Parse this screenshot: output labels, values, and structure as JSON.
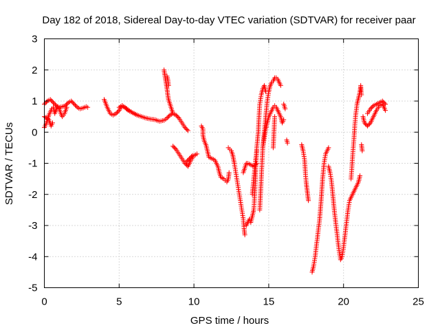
{
  "chart_data": {
    "type": "scatter",
    "title": "Day 182 of 2018, Sidereal Day-to-day VTEC variation (SDTVAR) for receiver paar",
    "xlabel": "GPS time / hours",
    "ylabel": "SDTVAR / TECUs",
    "xlim": [
      0,
      25
    ],
    "ylim": [
      -5,
      3
    ],
    "xticks": [
      0,
      5,
      10,
      15,
      20,
      25
    ],
    "yticks": [
      3,
      2,
      1,
      0,
      -1,
      -2,
      -3,
      -4,
      -5
    ],
    "grid": true,
    "marker": "plus",
    "color": "#ff0000",
    "series": [
      {
        "name": "SDTVAR",
        "segments": [
          [
            [
              0.0,
              0.9
            ],
            [
              0.2,
              1.0
            ],
            [
              0.4,
              1.05
            ],
            [
              0.6,
              0.95
            ],
            [
              0.8,
              0.85
            ],
            [
              1.0,
              0.8
            ],
            [
              1.2,
              0.82
            ],
            [
              1.4,
              0.85
            ],
            [
              1.6,
              0.95
            ],
            [
              1.8,
              1.0
            ],
            [
              2.0,
              0.9
            ],
            [
              2.2,
              0.8
            ],
            [
              2.4,
              0.75
            ],
            [
              2.6,
              0.78
            ],
            [
              2.8,
              0.82
            ],
            [
              2.9,
              0.8
            ]
          ],
          [
            [
              0.0,
              0.15
            ],
            [
              0.15,
              0.3
            ],
            [
              0.3,
              0.55
            ],
            [
              0.5,
              0.75
            ],
            [
              0.6,
              0.8
            ],
            [
              0.7,
              0.6
            ],
            [
              0.85,
              0.8
            ],
            [
              1.0,
              0.75
            ],
            [
              1.1,
              0.6
            ],
            [
              1.2,
              0.5
            ],
            [
              1.35,
              0.6
            ],
            [
              1.5,
              0.8
            ]
          ],
          [
            [
              0.0,
              0.5
            ],
            [
              0.15,
              0.45
            ],
            [
              0.3,
              0.4
            ],
            [
              0.45,
              0.2
            ],
            [
              0.55,
              0.3
            ]
          ],
          [
            [
              4.0,
              1.05
            ],
            [
              4.2,
              0.8
            ],
            [
              4.4,
              0.6
            ],
            [
              4.6,
              0.55
            ],
            [
              4.8,
              0.6
            ],
            [
              5.0,
              0.7
            ],
            [
              5.2,
              0.85
            ],
            [
              5.4,
              0.8
            ],
            [
              5.6,
              0.7
            ],
            [
              5.8,
              0.65
            ],
            [
              6.0,
              0.6
            ],
            [
              6.2,
              0.55
            ],
            [
              6.5,
              0.5
            ],
            [
              6.8,
              0.45
            ],
            [
              7.1,
              0.42
            ],
            [
              7.4,
              0.4
            ],
            [
              7.7,
              0.35
            ],
            [
              8.0,
              0.38
            ],
            [
              8.2,
              0.45
            ],
            [
              8.4,
              0.55
            ],
            [
              8.6,
              0.6
            ],
            [
              8.8,
              0.55
            ],
            [
              9.0,
              0.45
            ],
            [
              9.2,
              0.3
            ],
            [
              9.4,
              0.15
            ],
            [
              9.6,
              0.05
            ]
          ],
          [
            [
              5.0,
              0.8
            ],
            [
              5.2,
              0.85
            ],
            [
              5.5,
              0.75
            ],
            [
              5.8,
              0.65
            ],
            [
              6.2,
              0.55
            ]
          ],
          [
            [
              8.0,
              2.0
            ],
            [
              8.05,
              1.85
            ],
            [
              8.1,
              1.7
            ],
            [
              8.15,
              1.55
            ],
            [
              8.2,
              1.4
            ],
            [
              8.25,
              1.2
            ],
            [
              8.3,
              1.05
            ],
            [
              8.4,
              0.9
            ],
            [
              8.5,
              0.75
            ],
            [
              8.6,
              0.6
            ]
          ],
          [
            [
              8.2,
              1.8
            ],
            [
              8.25,
              1.7
            ],
            [
              8.3,
              1.5
            ]
          ],
          [
            [
              8.6,
              -0.45
            ],
            [
              8.8,
              -0.55
            ],
            [
              9.0,
              -0.7
            ],
            [
              9.2,
              -0.85
            ],
            [
              9.4,
              -1.0
            ],
            [
              9.6,
              -1.1
            ],
            [
              9.8,
              -0.9
            ],
            [
              10.0,
              -0.75
            ],
            [
              10.2,
              -0.7
            ]
          ],
          [
            [
              9.5,
              -0.95
            ],
            [
              9.7,
              -0.85
            ],
            [
              9.9,
              -0.75
            ]
          ],
          [
            [
              10.5,
              0.2
            ],
            [
              10.6,
              0.1
            ],
            [
              10.6,
              -0.1
            ],
            [
              10.7,
              -0.3
            ],
            [
              10.8,
              -0.4
            ],
            [
              10.9,
              -0.6
            ],
            [
              11.0,
              -0.8
            ],
            [
              11.2,
              -0.85
            ],
            [
              11.4,
              -0.9
            ],
            [
              11.5,
              -1.0
            ],
            [
              11.6,
              -1.1
            ],
            [
              11.7,
              -1.3
            ],
            [
              11.8,
              -1.45
            ],
            [
              12.0,
              -1.5
            ],
            [
              12.1,
              -1.55
            ],
            [
              12.2,
              -1.6
            ],
            [
              12.3,
              -1.5
            ],
            [
              12.35,
              -1.3
            ]
          ],
          [
            [
              12.3,
              -0.5
            ],
            [
              12.4,
              -0.55
            ],
            [
              12.5,
              -0.6
            ],
            [
              12.6,
              -0.75
            ],
            [
              12.7,
              -1.0
            ],
            [
              12.8,
              -1.3
            ],
            [
              12.9,
              -1.6
            ],
            [
              13.0,
              -1.9
            ],
            [
              13.1,
              -2.2
            ],
            [
              13.2,
              -2.5
            ],
            [
              13.3,
              -2.8
            ],
            [
              13.35,
              -3.1
            ],
            [
              13.4,
              -3.3
            ]
          ],
          [
            [
              13.3,
              -1.3
            ],
            [
              13.4,
              -1.15
            ],
            [
              13.5,
              -1.0
            ],
            [
              13.6,
              -1.0
            ],
            [
              13.8,
              -1.05
            ],
            [
              14.0,
              -1.1
            ],
            [
              14.2,
              -1.0
            ]
          ],
          [
            [
              13.5,
              -3.0
            ],
            [
              13.6,
              -2.9
            ],
            [
              13.7,
              -2.8
            ],
            [
              13.8,
              -2.9
            ],
            [
              13.9,
              -2.7
            ],
            [
              14.0,
              -2.5
            ],
            [
              14.05,
              -2.1
            ],
            [
              14.1,
              -1.6
            ],
            [
              14.15,
              -1.0
            ],
            [
              14.2,
              -0.5
            ],
            [
              14.3,
              0.0
            ],
            [
              14.35,
              0.5
            ],
            [
              14.4,
              0.9
            ],
            [
              14.5,
              1.2
            ],
            [
              14.6,
              1.4
            ],
            [
              14.7,
              1.5
            ],
            [
              14.8,
              1.3
            ]
          ],
          [
            [
              13.9,
              -2.0
            ],
            [
              14.0,
              -1.5
            ],
            [
              14.1,
              -1.0
            ],
            [
              14.2,
              -0.6
            ]
          ],
          [
            [
              14.4,
              -2.5
            ],
            [
              14.45,
              -2.0
            ],
            [
              14.5,
              -1.5
            ],
            [
              14.55,
              -1.0
            ],
            [
              14.6,
              -0.5
            ],
            [
              14.7,
              0.0
            ],
            [
              14.8,
              0.5
            ],
            [
              14.9,
              1.0
            ],
            [
              15.0,
              1.3
            ],
            [
              15.1,
              1.5
            ],
            [
              15.2,
              1.6
            ],
            [
              15.3,
              1.65
            ],
            [
              15.4,
              1.75
            ],
            [
              15.5,
              1.75
            ],
            [
              15.6,
              1.7
            ],
            [
              15.7,
              1.6
            ],
            [
              15.8,
              1.5
            ]
          ],
          [
            [
              14.6,
              -0.5
            ],
            [
              14.7,
              -0.2
            ],
            [
              14.8,
              0.1
            ],
            [
              14.9,
              0.3
            ],
            [
              15.0,
              0.5
            ],
            [
              15.1,
              0.6
            ],
            [
              15.2,
              0.7
            ],
            [
              15.3,
              0.8
            ],
            [
              15.4,
              0.85
            ],
            [
              15.5,
              0.8
            ],
            [
              15.6,
              0.7
            ],
            [
              15.7,
              0.6
            ],
            [
              15.8,
              0.5
            ],
            [
              15.9,
              0.3
            ],
            [
              16.0,
              0.4
            ]
          ],
          [
            [
              15.3,
              -0.5
            ],
            [
              15.35,
              0.0
            ],
            [
              15.4,
              0.5
            ]
          ],
          [
            [
              16.0,
              0.9
            ],
            [
              16.1,
              0.75
            ]
          ],
          [
            [
              16.2,
              -0.25
            ],
            [
              16.25,
              -0.35
            ]
          ],
          [
            [
              17.2,
              -0.4
            ],
            [
              17.3,
              -0.6
            ],
            [
              17.4,
              -0.9
            ],
            [
              17.45,
              -1.3
            ],
            [
              17.5,
              -1.6
            ],
            [
              17.55,
              -1.8
            ],
            [
              17.6,
              -2.0
            ],
            [
              17.65,
              -2.2
            ]
          ],
          [
            [
              17.9,
              -4.5
            ],
            [
              18.0,
              -4.3
            ],
            [
              18.1,
              -4.0
            ],
            [
              18.2,
              -3.6
            ],
            [
              18.3,
              -3.2
            ],
            [
              18.4,
              -2.8
            ],
            [
              18.5,
              -2.2
            ],
            [
              18.6,
              -1.5
            ],
            [
              18.7,
              -1.0
            ],
            [
              18.8,
              -0.7
            ],
            [
              18.9,
              -0.6
            ],
            [
              19.0,
              -0.5
            ]
          ],
          [
            [
              19.0,
              -1.1
            ],
            [
              19.1,
              -1.3
            ],
            [
              19.2,
              -1.6
            ],
            [
              19.3,
              -2.1
            ],
            [
              19.4,
              -2.6
            ],
            [
              19.5,
              -3.0
            ],
            [
              19.6,
              -3.4
            ],
            [
              19.7,
              -3.8
            ],
            [
              19.8,
              -4.1
            ],
            [
              19.9,
              -4.0
            ],
            [
              20.0,
              -3.7
            ],
            [
              20.1,
              -3.3
            ],
            [
              20.2,
              -2.9
            ],
            [
              20.3,
              -2.5
            ],
            [
              20.4,
              -2.2
            ],
            [
              20.6,
              -2.0
            ],
            [
              20.8,
              -1.8
            ],
            [
              21.0,
              -1.6
            ],
            [
              21.1,
              -1.4
            ]
          ],
          [
            [
              20.5,
              -1.5
            ],
            [
              20.55,
              -1.2
            ],
            [
              20.6,
              -0.8
            ],
            [
              20.65,
              -0.5
            ],
            [
              20.7,
              -0.2
            ],
            [
              20.75,
              0.2
            ],
            [
              20.8,
              0.5
            ],
            [
              20.9,
              0.9
            ],
            [
              21.0,
              1.1
            ],
            [
              21.1,
              1.3
            ],
            [
              21.15,
              1.5
            ],
            [
              21.2,
              1.2
            ]
          ],
          [
            [
              21.3,
              0.5
            ],
            [
              21.4,
              0.3
            ],
            [
              21.6,
              0.2
            ],
            [
              21.8,
              0.3
            ],
            [
              22.0,
              0.5
            ],
            [
              22.2,
              0.7
            ],
            [
              22.4,
              0.85
            ],
            [
              22.6,
              0.9
            ],
            [
              22.8,
              0.7
            ]
          ],
          [
            [
              21.2,
              -0.4
            ],
            [
              21.25,
              -0.6
            ]
          ],
          [
            [
              21.6,
              0.6
            ],
            [
              21.8,
              0.75
            ],
            [
              22.0,
              0.85
            ],
            [
              22.2,
              0.9
            ],
            [
              22.4,
              0.95
            ],
            [
              22.6,
              1.0
            ],
            [
              22.8,
              0.9
            ]
          ]
        ]
      }
    ]
  }
}
